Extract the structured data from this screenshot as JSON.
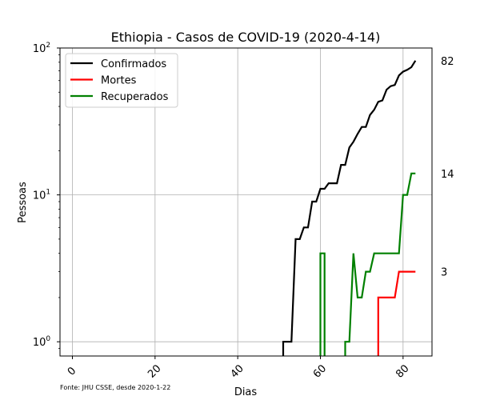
{
  "chart_data": {
    "type": "line",
    "title": "Ethiopia - Casos de COVID-19 (2020-4-14)",
    "xlabel": "Dias",
    "ylabel": "Pessoas",
    "yscale": "log",
    "xlim": [
      -3,
      87
    ],
    "ylim": [
      0.8,
      100
    ],
    "xticks": [
      0,
      20,
      40,
      60,
      80
    ],
    "yticks": [
      {
        "value": 1,
        "base": "10",
        "exp": "0"
      },
      {
        "value": 10,
        "base": "10",
        "exp": "1"
      },
      {
        "value": 100,
        "base": "10",
        "exp": "2"
      }
    ],
    "grid": true,
    "legend_position": "top-left",
    "series": [
      {
        "name": "Confirmados",
        "color": "#000000",
        "points": [
          [
            51,
            0.8
          ],
          [
            51,
            1
          ],
          [
            53,
            1
          ],
          [
            54,
            5
          ],
          [
            55,
            5
          ],
          [
            56,
            6
          ],
          [
            57,
            6
          ],
          [
            58,
            9
          ],
          [
            59,
            9
          ],
          [
            60,
            11
          ],
          [
            61,
            11
          ],
          [
            62,
            12
          ],
          [
            64,
            12
          ],
          [
            65,
            16
          ],
          [
            66,
            16
          ],
          [
            67,
            21
          ],
          [
            68,
            23
          ],
          [
            69,
            26
          ],
          [
            70,
            29
          ],
          [
            71,
            29
          ],
          [
            72,
            35
          ],
          [
            73,
            38
          ],
          [
            74,
            43
          ],
          [
            75,
            44
          ],
          [
            76,
            52
          ],
          [
            77,
            55
          ],
          [
            78,
            56
          ],
          [
            79,
            65
          ],
          [
            80,
            69
          ],
          [
            81,
            71
          ],
          [
            82,
            74
          ],
          [
            83,
            82
          ]
        ]
      },
      {
        "name": "Mortes",
        "color": "#ff0000",
        "points": [
          [
            74,
            0.8
          ],
          [
            74,
            2
          ],
          [
            78,
            2
          ],
          [
            79,
            3
          ],
          [
            83,
            3
          ]
        ]
      },
      {
        "name": "Recuperados",
        "color": "#008000",
        "points": [
          [
            60,
            0.8
          ],
          [
            60,
            4
          ],
          [
            61,
            4
          ],
          [
            61,
            0.8
          ]
        ],
        "points2": [
          [
            66,
            0.8
          ],
          [
            66,
            1
          ],
          [
            67,
            1
          ],
          [
            68,
            4
          ],
          [
            69,
            2
          ],
          [
            70,
            2
          ],
          [
            71,
            3
          ],
          [
            72,
            3
          ],
          [
            73,
            4
          ],
          [
            79,
            4
          ],
          [
            80,
            10
          ],
          [
            81,
            10
          ],
          [
            82,
            14
          ],
          [
            83,
            14
          ]
        ]
      }
    ],
    "end_labels": [
      "82",
      "14",
      "3"
    ],
    "source_note": "Fonte: JHU CSSE, desde 2020-1-22"
  }
}
